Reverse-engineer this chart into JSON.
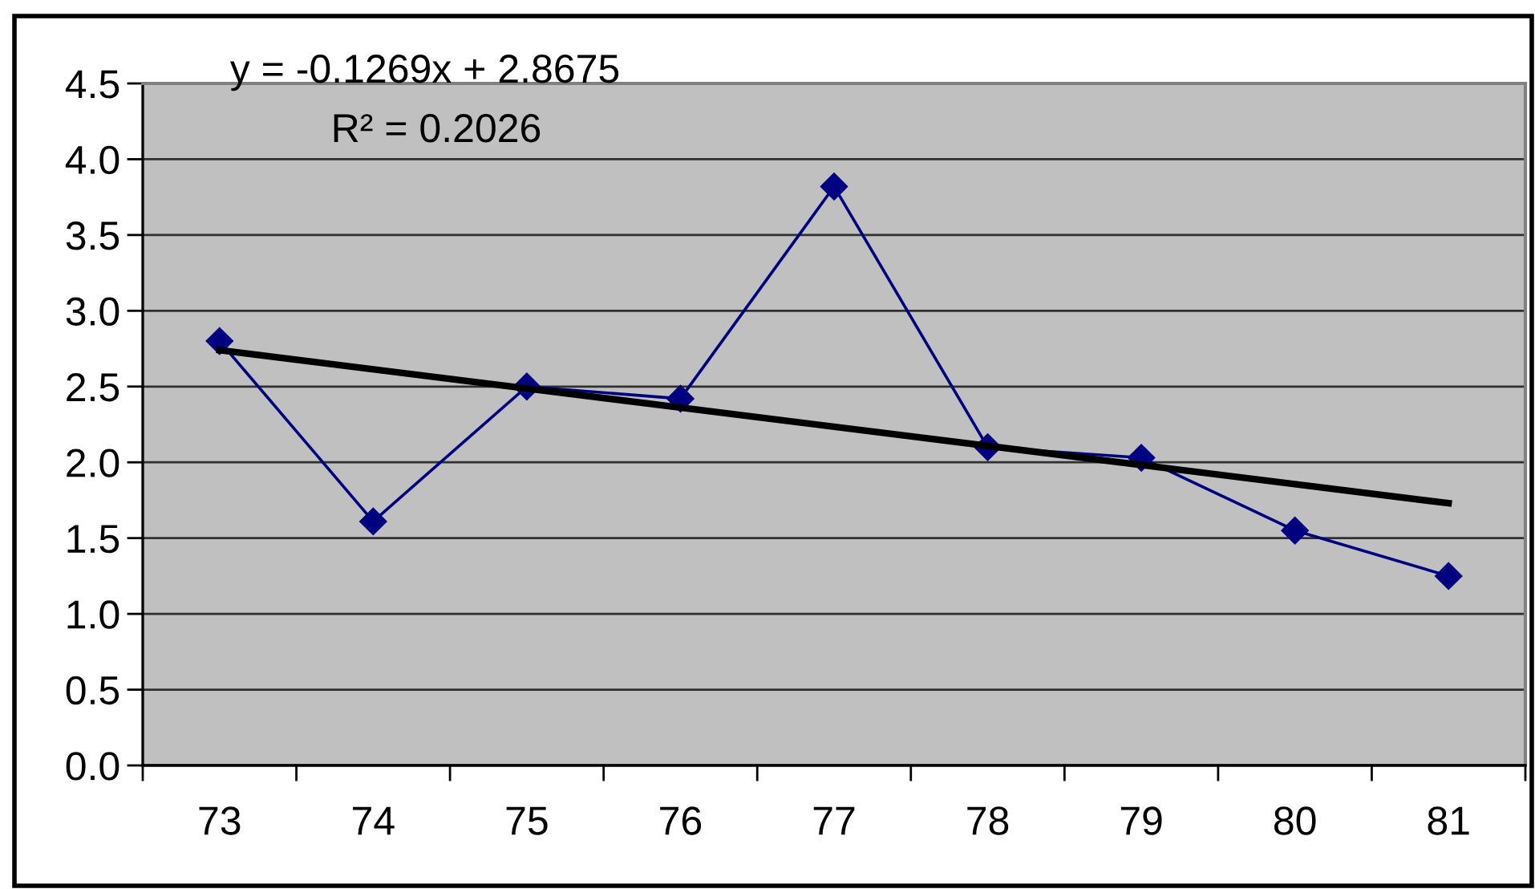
{
  "chart_data": {
    "type": "line",
    "categories": [
      "73",
      "74",
      "75",
      "76",
      "77",
      "78",
      "79",
      "80",
      "81"
    ],
    "series": [
      {
        "color": "#000080",
        "values": [
          2.8,
          1.61,
          2.5,
          2.42,
          3.82,
          2.1,
          2.03,
          1.55,
          1.25
        ]
      },
      {
        "type": "line",
        "x": [
          "73",
          "81"
        ],
        "color": "#000000",
        "values": [
          2.74,
          1.73
        ],
        "marker": "none"
      }
    ],
    "marker": "diamond",
    "ylim": [
      0,
      4.5
    ],
    "yticks": [
      {
        "value": 0,
        "label": "0.0"
      },
      0.5,
      {
        "value": 1,
        "label": "1.0"
      },
      1.5,
      {
        "value": 2,
        "label": "2.0"
      },
      2.5,
      {
        "value": 3,
        "label": "3.0"
      },
      3.5,
      {
        "value": 4,
        "label": "4.0"
      },
      4.5
    ],
    "grid": "y",
    "annotations": [
      "y = -0.1269x + 2.8675",
      "R² = 0.2026"
    ]
  }
}
